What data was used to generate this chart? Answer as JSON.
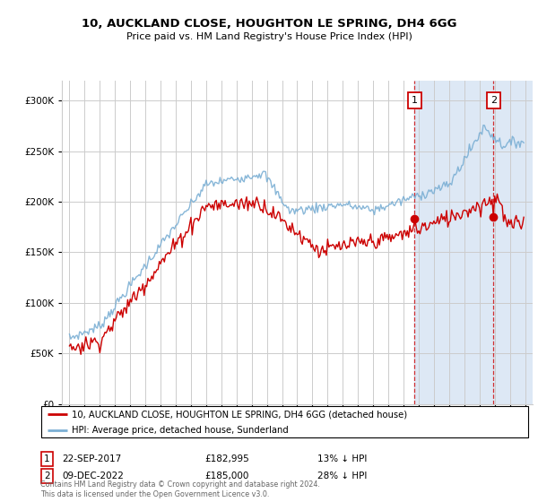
{
  "title": "10, AUCKLAND CLOSE, HOUGHTON LE SPRING, DH4 6GG",
  "subtitle": "Price paid vs. HM Land Registry's House Price Index (HPI)",
  "legend_line1": "10, AUCKLAND CLOSE, HOUGHTON LE SPRING, DH4 6GG (detached house)",
  "legend_line2": "HPI: Average price, detached house, Sunderland",
  "annotation1_label": "1",
  "annotation1_date": "22-SEP-2017",
  "annotation1_price": "£182,995",
  "annotation1_note": "13% ↓ HPI",
  "annotation1_year": 2017.72,
  "annotation1_price_val": 182995,
  "annotation2_label": "2",
  "annotation2_date": "09-DEC-2022",
  "annotation2_price": "£185,000",
  "annotation2_note": "28% ↓ HPI",
  "annotation2_year": 2022.93,
  "annotation2_price_val": 185000,
  "red_color": "#cc0000",
  "blue_color": "#7BAFD4",
  "background_color": "#ffffff",
  "grid_color": "#cccccc",
  "shaded_color": "#dde8f5",
  "footer": "Contains HM Land Registry data © Crown copyright and database right 2024.\nThis data is licensed under the Open Government Licence v3.0.",
  "ylim": [
    0,
    320000
  ],
  "xlim_start": 1994.5,
  "xlim_end": 2025.5
}
